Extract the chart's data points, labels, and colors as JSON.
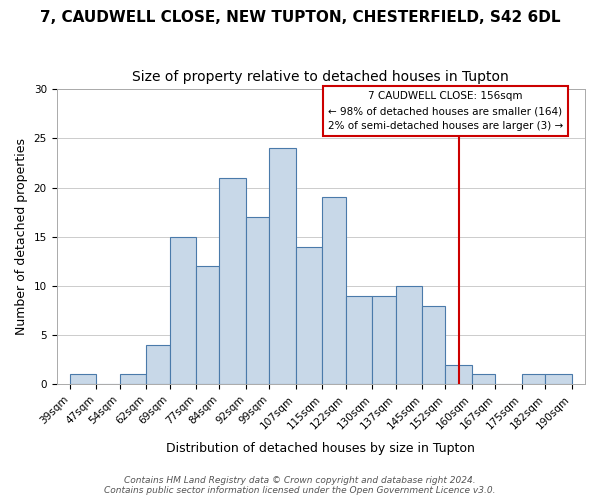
{
  "title": "7, CAUDWELL CLOSE, NEW TUPTON, CHESTERFIELD, S42 6DL",
  "subtitle": "Size of property relative to detached houses in Tupton",
  "xlabel": "Distribution of detached houses by size in Tupton",
  "ylabel": "Number of detached properties",
  "bar_edges": [
    39,
    47,
    54,
    62,
    69,
    77,
    84,
    92,
    99,
    107,
    115,
    122,
    130,
    137,
    145,
    152,
    160,
    167,
    175,
    182,
    190
  ],
  "bar_heights": [
    1,
    0,
    1,
    4,
    15,
    12,
    21,
    17,
    24,
    14,
    19,
    9,
    9,
    10,
    8,
    2,
    1,
    0,
    1,
    1
  ],
  "bar_color": "#c8d8e8",
  "bar_edge_color": "#4a7aaa",
  "bar_edge_linewidth": 0.8,
  "grid_color": "#cccccc",
  "property_line_x": 156,
  "property_line_color": "#cc0000",
  "annotation_title": "7 CAUDWELL CLOSE: 156sqm",
  "annotation_line1": "← 98% of detached houses are smaller (164)",
  "annotation_line2": "2% of semi-detached houses are larger (3) →",
  "annotation_box_color": "#ffffff",
  "annotation_box_edge_color": "#cc0000",
  "tick_labels": [
    "39sqm",
    "47sqm",
    "54sqm",
    "62sqm",
    "69sqm",
    "77sqm",
    "84sqm",
    "92sqm",
    "99sqm",
    "107sqm",
    "115sqm",
    "122sqm",
    "130sqm",
    "137sqm",
    "145sqm",
    "152sqm",
    "160sqm",
    "167sqm",
    "175sqm",
    "182sqm",
    "190sqm"
  ],
  "ylim": [
    0,
    30
  ],
  "yticks": [
    0,
    5,
    10,
    15,
    20,
    25,
    30
  ],
  "footer_line1": "Contains HM Land Registry data © Crown copyright and database right 2024.",
  "footer_line2": "Contains public sector information licensed under the Open Government Licence v3.0.",
  "title_fontsize": 11,
  "subtitle_fontsize": 10,
  "axis_label_fontsize": 9,
  "tick_fontsize": 7.5,
  "footer_fontsize": 6.5
}
